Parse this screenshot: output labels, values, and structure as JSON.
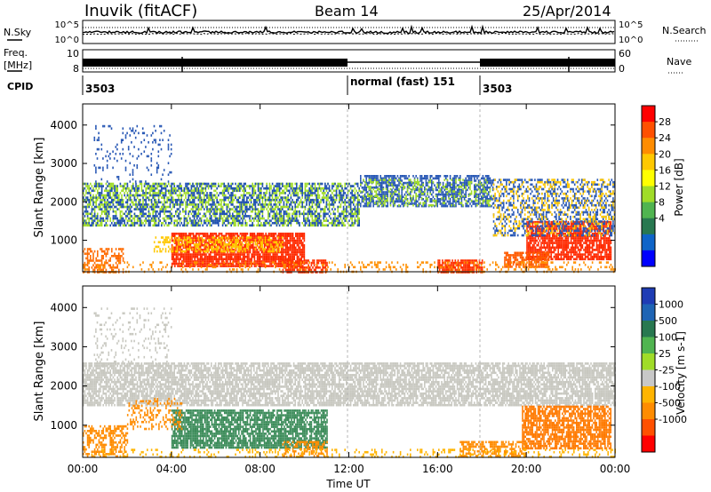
{
  "header": {
    "station": "Inuvik (fitACF)",
    "beam": "Beam 14",
    "date": "25/Apr/2014"
  },
  "top_panels": {
    "nsky_label": "N.Sky",
    "nsky_ticks": [
      "10^5",
      "10^0"
    ],
    "nsearch_label": "N.Search",
    "nsearch_ticks": [
      "10^5",
      "10^0"
    ],
    "freq_label_1": "Freq.",
    "freq_label_2": "[MHz]",
    "freq_ticks": [
      "10",
      "8"
    ],
    "nave_label": "Nave",
    "nave_ticks": [
      "60",
      "0"
    ],
    "cpid_label": "CPID",
    "cpid_segments": [
      {
        "label": "3503",
        "start_hr": 0,
        "end_hr": 12
      },
      {
        "label": "normal (fast) 151",
        "start_hr": 12,
        "end_hr": 18
      },
      {
        "label": "3503",
        "start_hr": 18,
        "end_hr": 24
      }
    ]
  },
  "chart_data": [
    {
      "type": "heatmap",
      "variable": "power",
      "ylabel": "Slant Range [km]",
      "yticks": [
        1000,
        2000,
        3000,
        4000
      ],
      "ylim": [
        180,
        4550
      ],
      "xlim": [
        0,
        24
      ],
      "colorbar": {
        "label": "Power [dB]",
        "tick_labels": [
          "28",
          "24",
          "20",
          "16",
          "12",
          "8",
          "4"
        ],
        "colors": [
          "#ff0000",
          "#ff5000",
          "#ff8c00",
          "#ffc800",
          "#ffff00",
          "#a0dc28",
          "#50b450",
          "#287850",
          "#0f64c8",
          "#0000ff"
        ]
      },
      "bands": [
        {
          "hr": [
            4.0,
            10.0
          ],
          "km": [
            350,
            1200
          ],
          "c": "#ff2a00",
          "d": 0.85
        },
        {
          "hr": [
            3.2,
            9.0
          ],
          "km": [
            700,
            1100
          ],
          "c": "#ffc800",
          "d": 0.45
        },
        {
          "hr": [
            20.0,
            23.8
          ],
          "km": [
            500,
            1500
          ],
          "c": "#ff2a00",
          "d": 0.8
        },
        {
          "hr": [
            19.0,
            21.0
          ],
          "km": [
            300,
            700
          ],
          "c": "#ff5a00",
          "d": 0.7
        },
        {
          "hr": [
            16.0,
            18.0
          ],
          "km": [
            180,
            500
          ],
          "c": "#ff3000",
          "d": 0.8
        },
        {
          "hr": [
            9.0,
            11.0
          ],
          "km": [
            180,
            500
          ],
          "c": "#ff3000",
          "d": 0.7
        },
        {
          "hr": [
            0.0,
            1.8
          ],
          "km": [
            180,
            800
          ],
          "c": "#ff6a00",
          "d": 0.5
        },
        {
          "hr": [
            0.0,
            12.5
          ],
          "km": [
            1400,
            2500
          ],
          "c": "#a0dc28",
          "d": 0.5
        },
        {
          "hr": [
            0.0,
            12.5
          ],
          "km": [
            1400,
            2500
          ],
          "c": "#1e4fb5",
          "d": 0.35
        },
        {
          "hr": [
            12.5,
            18.5
          ],
          "km": [
            1900,
            2700
          ],
          "c": "#2858b5",
          "d": 0.6
        },
        {
          "hr": [
            12.5,
            18.5
          ],
          "km": [
            1900,
            2600
          ],
          "c": "#a0dc28",
          "d": 0.25
        },
        {
          "hr": [
            18.5,
            24.0
          ],
          "km": [
            1100,
            2600
          ],
          "c": "#2858b5",
          "d": 0.35
        },
        {
          "hr": [
            18.5,
            24.0
          ],
          "km": [
            1100,
            2600
          ],
          "c": "#ffc800",
          "d": 0.2
        },
        {
          "hr": [
            0.5,
            4.0
          ],
          "km": [
            2500,
            4000
          ],
          "c": "#2858b5",
          "d": 0.12
        },
        {
          "hr": [
            0.0,
            24.0
          ],
          "km": [
            180,
            450
          ],
          "c": "#ff9000",
          "d": 0.2
        }
      ]
    },
    {
      "type": "heatmap",
      "variable": "velocity",
      "ylabel": "Slant Range [km]",
      "yticks": [
        1000,
        2000,
        3000,
        4000
      ],
      "ylim": [
        180,
        4550
      ],
      "xlim": [
        0,
        24
      ],
      "xticks": [
        "00:00",
        "04:00",
        "08:00",
        "12:00",
        "16:00",
        "20:00",
        "00:00"
      ],
      "xlabel": "Time UT",
      "colorbar": {
        "label": "Velocity [m s-1]",
        "tick_labels": [
          "1000",
          "500",
          "100",
          "25",
          "-25",
          "-100",
          "-500",
          "-1000"
        ],
        "colors": [
          "#1e3cb4",
          "#1e64b4",
          "#287850",
          "#50b450",
          "#a0dc28",
          "#c8c8c8",
          "#ffb400",
          "#ff8c00",
          "#ff5000",
          "#ff0000"
        ]
      },
      "bands": [
        {
          "hr": [
            0.0,
            24.0
          ],
          "km": [
            1500,
            2600
          ],
          "c": "#c8c8c0",
          "d": 0.75
        },
        {
          "hr": [
            4.0,
            11.0
          ],
          "km": [
            450,
            1400
          ],
          "c": "#3c8c5a",
          "d": 0.8
        },
        {
          "hr": [
            2.0,
            4.5
          ],
          "km": [
            900,
            1700
          ],
          "c": "#ff8c00",
          "d": 0.3
        },
        {
          "hr": [
            19.8,
            23.8
          ],
          "km": [
            400,
            1500
          ],
          "c": "#ff7a00",
          "d": 0.75
        },
        {
          "hr": [
            17.0,
            20.0
          ],
          "km": [
            200,
            600
          ],
          "c": "#ff8c00",
          "d": 0.6
        },
        {
          "hr": [
            0.0,
            2.0
          ],
          "km": [
            180,
            1000
          ],
          "c": "#ff8c00",
          "d": 0.5
        },
        {
          "hr": [
            9.0,
            11.0
          ],
          "km": [
            200,
            600
          ],
          "c": "#ff8c00",
          "d": 0.5
        },
        {
          "hr": [
            0.5,
            4.0
          ],
          "km": [
            2500,
            4000
          ],
          "c": "#c8c8c0",
          "d": 0.15
        },
        {
          "hr": [
            0.0,
            24.0
          ],
          "km": [
            180,
            400
          ],
          "c": "#ffb400",
          "d": 0.2
        }
      ]
    }
  ]
}
